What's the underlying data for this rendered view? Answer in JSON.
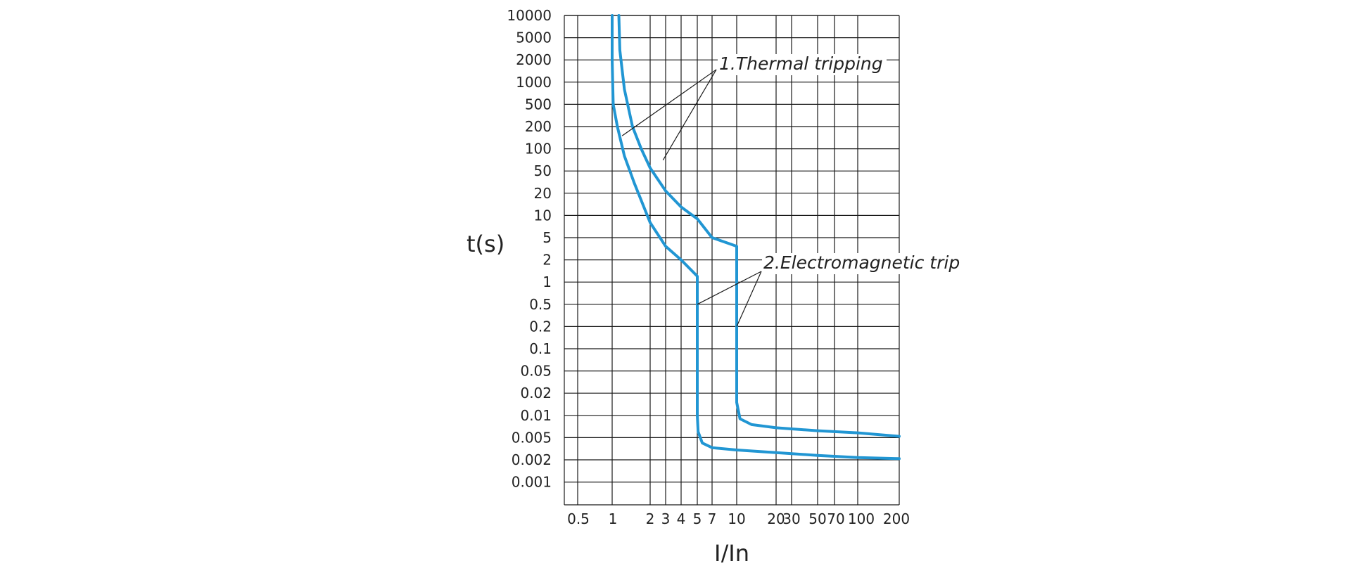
{
  "chart_data": {
    "type": "line",
    "title": "",
    "xlabel": "I/In",
    "ylabel": "t(s)",
    "x_scale": "categorical-log",
    "y_scale": "log",
    "grid": true,
    "legend": "none",
    "x_ticks": [
      "0.5",
      "1",
      "2",
      "3",
      "4",
      "5",
      "7",
      "10",
      "20",
      "30",
      "50",
      "70",
      "100",
      "200"
    ],
    "y_ticks": [
      "10000",
      "5000",
      "2000",
      "1000",
      "500",
      "200",
      "100",
      "50",
      "20",
      "10",
      "5",
      "2",
      "1",
      "0.5",
      "0.2",
      "0.1",
      "0.05",
      "0.02",
      "0.01",
      "0.005",
      "0.002",
      "0.001"
    ],
    "curve_color": "#2196d3",
    "series": [
      {
        "points": [
          [
            1.0,
            10000
          ],
          [
            1.0,
            2000
          ],
          [
            1.02,
            500
          ],
          [
            1.1,
            200
          ],
          [
            1.25,
            80
          ],
          [
            1.5,
            30
          ],
          [
            2.0,
            8
          ],
          [
            3.0,
            3.5
          ],
          [
            4.0,
            2
          ],
          [
            5.0,
            1.2
          ],
          [
            5.0,
            0.5
          ],
          [
            5.0,
            0.05
          ],
          [
            5.0,
            0.01
          ],
          [
            5.1,
            0.006
          ],
          [
            5.6,
            0.004
          ],
          [
            7.0,
            0.0033
          ],
          [
            10.0,
            0.003
          ],
          [
            20.0,
            0.0027
          ],
          [
            50.0,
            0.0024
          ],
          [
            100.0,
            0.0022
          ],
          [
            200.0,
            0.0021
          ]
        ]
      },
      {
        "points": [
          [
            1.13,
            10000
          ],
          [
            1.15,
            3000
          ],
          [
            1.25,
            800
          ],
          [
            1.45,
            200
          ],
          [
            1.7,
            100
          ],
          [
            2.0,
            55
          ],
          [
            3.0,
            22
          ],
          [
            4.0,
            13
          ],
          [
            5.0,
            9
          ],
          [
            7.0,
            5
          ],
          [
            10.0,
            3.5
          ],
          [
            10.0,
            0.5
          ],
          [
            10.0,
            0.05
          ],
          [
            10.0,
            0.015
          ],
          [
            10.6,
            0.009
          ],
          [
            13.0,
            0.0075
          ],
          [
            20.0,
            0.0068
          ],
          [
            50.0,
            0.0062
          ],
          [
            100.0,
            0.0058
          ],
          [
            200.0,
            0.0052
          ]
        ]
      }
    ],
    "annotations": [
      {
        "text": "1.Thermal tripping",
        "targets": [
          [
            1.2,
            150
          ],
          [
            2.8,
            70
          ]
        ]
      },
      {
        "text": "2.Electromagnetic trip",
        "targets": [
          [
            5.0,
            0.5
          ],
          [
            10.0,
            0.2
          ]
        ]
      }
    ]
  }
}
